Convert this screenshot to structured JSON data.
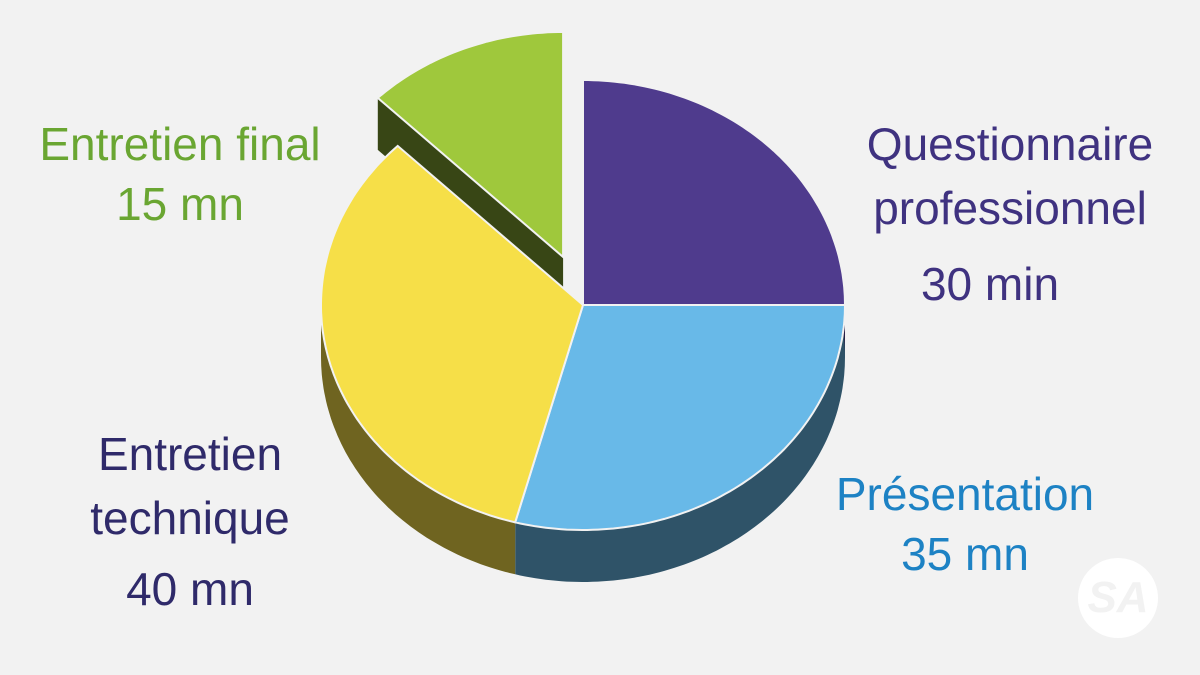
{
  "chart_data": {
    "type": "pie",
    "categories": [
      "Questionnaire professionnel",
      "Présentation",
      "Entretien technique",
      "Entretien final"
    ],
    "values": [
      30,
      35,
      40,
      15
    ],
    "value_labels": [
      "30 min",
      "35 mn",
      "40 mn",
      "15 mn"
    ],
    "colors": [
      "#4f3b8d",
      "#68b9e8",
      "#f6df48",
      "#9fc83c"
    ],
    "label_colors": [
      "#3f3280",
      "#1d82c4",
      "#2f2a6a",
      "#6aa632"
    ],
    "explode": [
      false,
      false,
      false,
      true
    ]
  },
  "logo": "SA"
}
